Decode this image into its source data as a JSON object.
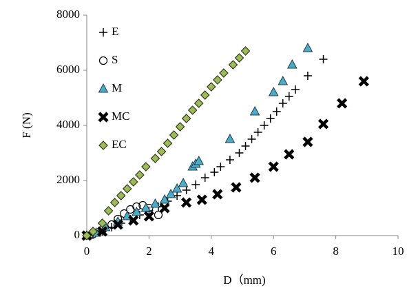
{
  "chart_data": {
    "type": "scatter",
    "x_label": "D（mm)",
    "y_label": "F (N)",
    "xlim": [
      0,
      10
    ],
    "xticks": [
      0,
      2,
      4,
      6,
      8,
      10
    ],
    "ylim": [
      0,
      8000
    ],
    "yticks": [
      0,
      2000,
      4000,
      6000,
      8000
    ],
    "grid": false,
    "legend": "top-left",
    "series": [
      {
        "name": "E",
        "marker": "plus",
        "color": "#000000",
        "x": [
          0.2,
          0.5,
          0.8,
          1.1,
          1.4,
          1.7,
          2.0,
          2.3,
          2.6,
          2.9,
          3.2,
          3.5,
          3.8,
          4.1,
          4.3,
          4.6,
          4.9,
          5.1,
          5.3,
          5.5,
          5.7,
          5.9,
          6.1,
          6.3,
          6.5,
          6.7,
          7.1,
          7.6
        ],
        "y": [
          30,
          150,
          300,
          450,
          600,
          750,
          900,
          1050,
          1250,
          1450,
          1650,
          1850,
          2100,
          2300,
          2500,
          2750,
          3000,
          3250,
          3500,
          3750,
          4000,
          4250,
          4500,
          4800,
          5050,
          5300,
          5800,
          6400
        ]
      },
      {
        "name": "S",
        "marker": "circle",
        "color": "#000000",
        "x": [
          0.2,
          0.5,
          0.8,
          1.0,
          1.2,
          1.4,
          1.6,
          1.8,
          2.0,
          2.3
        ],
        "y": [
          50,
          200,
          400,
          600,
          800,
          950,
          1050,
          1100,
          1000,
          750
        ]
      },
      {
        "name": "M",
        "marker": "triangle",
        "color": "#4bacc6",
        "x": [
          0,
          0.3,
          0.6,
          1.0,
          1.3,
          1.6,
          1.9,
          2.2,
          2.5,
          2.7,
          2.9,
          3.1,
          3.4,
          3.5,
          3.6,
          4.6,
          5.4,
          6.0,
          6.3,
          6.6,
          7.1
        ],
        "y": [
          0,
          100,
          300,
          500,
          700,
          850,
          1000,
          1150,
          1300,
          1500,
          1700,
          1900,
          2500,
          2600,
          2700,
          3500,
          4500,
          5200,
          5600,
          6200,
          6800
        ]
      },
      {
        "name": "MC",
        "marker": "x",
        "color": "#000000",
        "x": [
          0,
          0.5,
          1.0,
          1.5,
          2.0,
          2.5,
          3.2,
          3.7,
          4.2,
          4.8,
          5.4,
          6.0,
          6.5,
          7.1,
          7.6,
          8.2,
          8.9
        ],
        "y": [
          0,
          150,
          400,
          550,
          700,
          1000,
          1200,
          1300,
          1500,
          1750,
          2100,
          2500,
          2950,
          3400,
          4050,
          4800,
          5600
        ]
      },
      {
        "name": "EC",
        "marker": "diamond",
        "color": "#9bbb59",
        "x": [
          0,
          0.2,
          0.5,
          0.7,
          0.9,
          1.1,
          1.3,
          1.5,
          1.7,
          1.9,
          2.2,
          2.4,
          2.6,
          2.8,
          3.0,
          3.2,
          3.4,
          3.6,
          3.8,
          4.0,
          4.2,
          4.4,
          4.7,
          4.9,
          5.1
        ],
        "y": [
          0,
          150,
          450,
          900,
          1200,
          1450,
          1700,
          1950,
          2200,
          2500,
          2800,
          3050,
          3350,
          3650,
          3950,
          4250,
          4550,
          4800,
          5100,
          5400,
          5650,
          5900,
          6200,
          6450,
          6700
        ]
      }
    ]
  }
}
